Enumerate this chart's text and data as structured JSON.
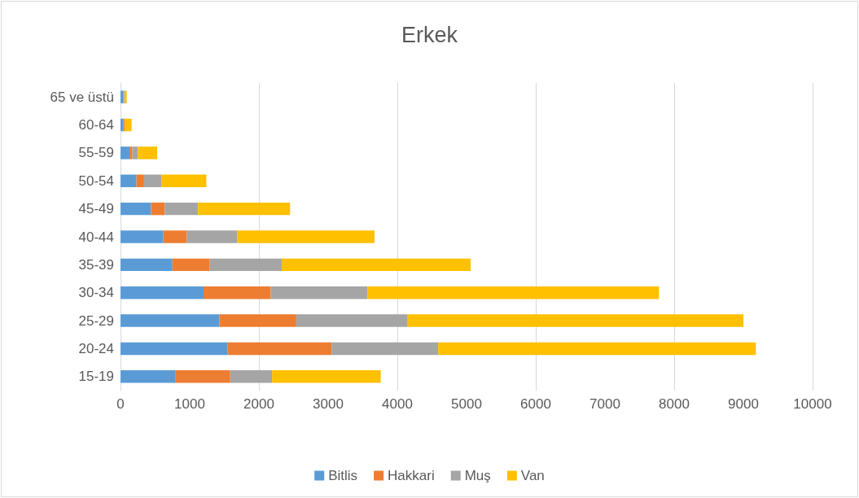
{
  "chart_data": {
    "type": "bar",
    "title": "Erkek",
    "orientation": "horizontal",
    "stacked": true,
    "categories": [
      "65 ve üstü",
      "60-64",
      "55-59",
      "50-54",
      "45-49",
      "40-44",
      "35-39",
      "30-34",
      "25-29",
      "20-24",
      "15-19"
    ],
    "series": [
      {
        "name": "Bitlis",
        "color": "#5b9bd5",
        "values": [
          40,
          40,
          130,
          230,
          440,
          620,
          750,
          1200,
          1430,
          1550,
          790
        ]
      },
      {
        "name": "Hakkari",
        "color": "#ed7d31",
        "values": [
          10,
          20,
          40,
          110,
          200,
          340,
          540,
          970,
          1110,
          1500,
          795
        ]
      },
      {
        "name": "Muş",
        "color": "#a5a5a5",
        "values": [
          10,
          null,
          80,
          250,
          480,
          730,
          1040,
          1400,
          1610,
          1540,
          605
        ]
      },
      {
        "name": "Van",
        "color": "#ffc000",
        "values": [
          30,
          100,
          280,
          650,
          1330,
          1980,
          2730,
          4210,
          4850,
          4590,
          1570
        ]
      }
    ],
    "xlim": [
      0,
      10000
    ],
    "xticks": [
      0,
      1000,
      2000,
      3000,
      4000,
      5000,
      6000,
      7000,
      8000,
      9000,
      10000
    ],
    "grid": "x",
    "legend": "bottom"
  }
}
